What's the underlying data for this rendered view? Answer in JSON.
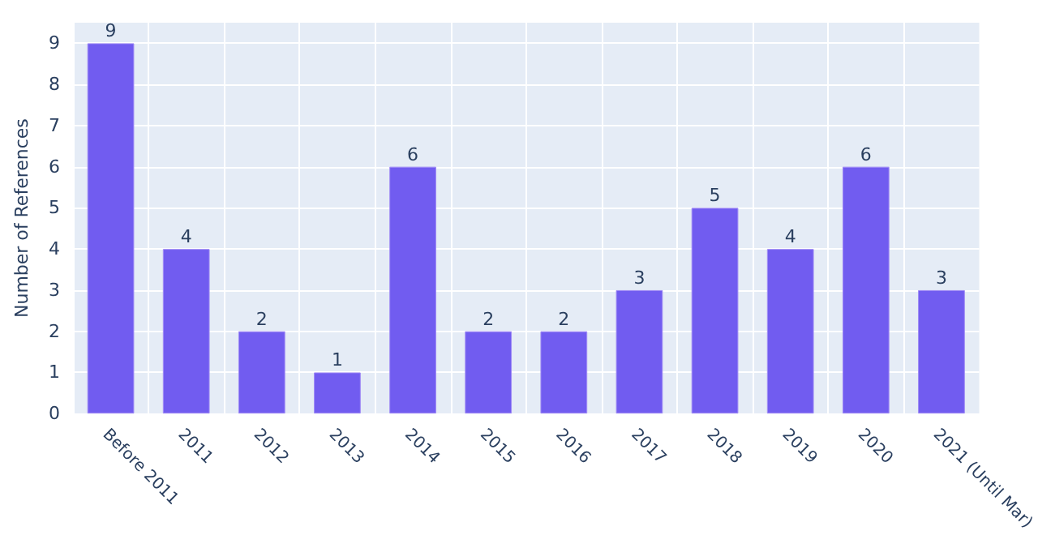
{
  "chart_data": {
    "type": "bar",
    "ylabel": "Number of References",
    "categories": [
      "Before 2011",
      "2011",
      "2012",
      "2013",
      "2014",
      "2015",
      "2016",
      "2017",
      "2018",
      "2019",
      "2020",
      "2021 (Until Mar)"
    ],
    "values": [
      9,
      4,
      2,
      1,
      6,
      2,
      2,
      3,
      5,
      4,
      6,
      3
    ],
    "color": "#715cf0",
    "ylim": [
      0,
      9.5
    ],
    "yticks": [
      0,
      1,
      2,
      3,
      4,
      5,
      6,
      7,
      8,
      9
    ],
    "grid": true,
    "data_labels": true
  }
}
